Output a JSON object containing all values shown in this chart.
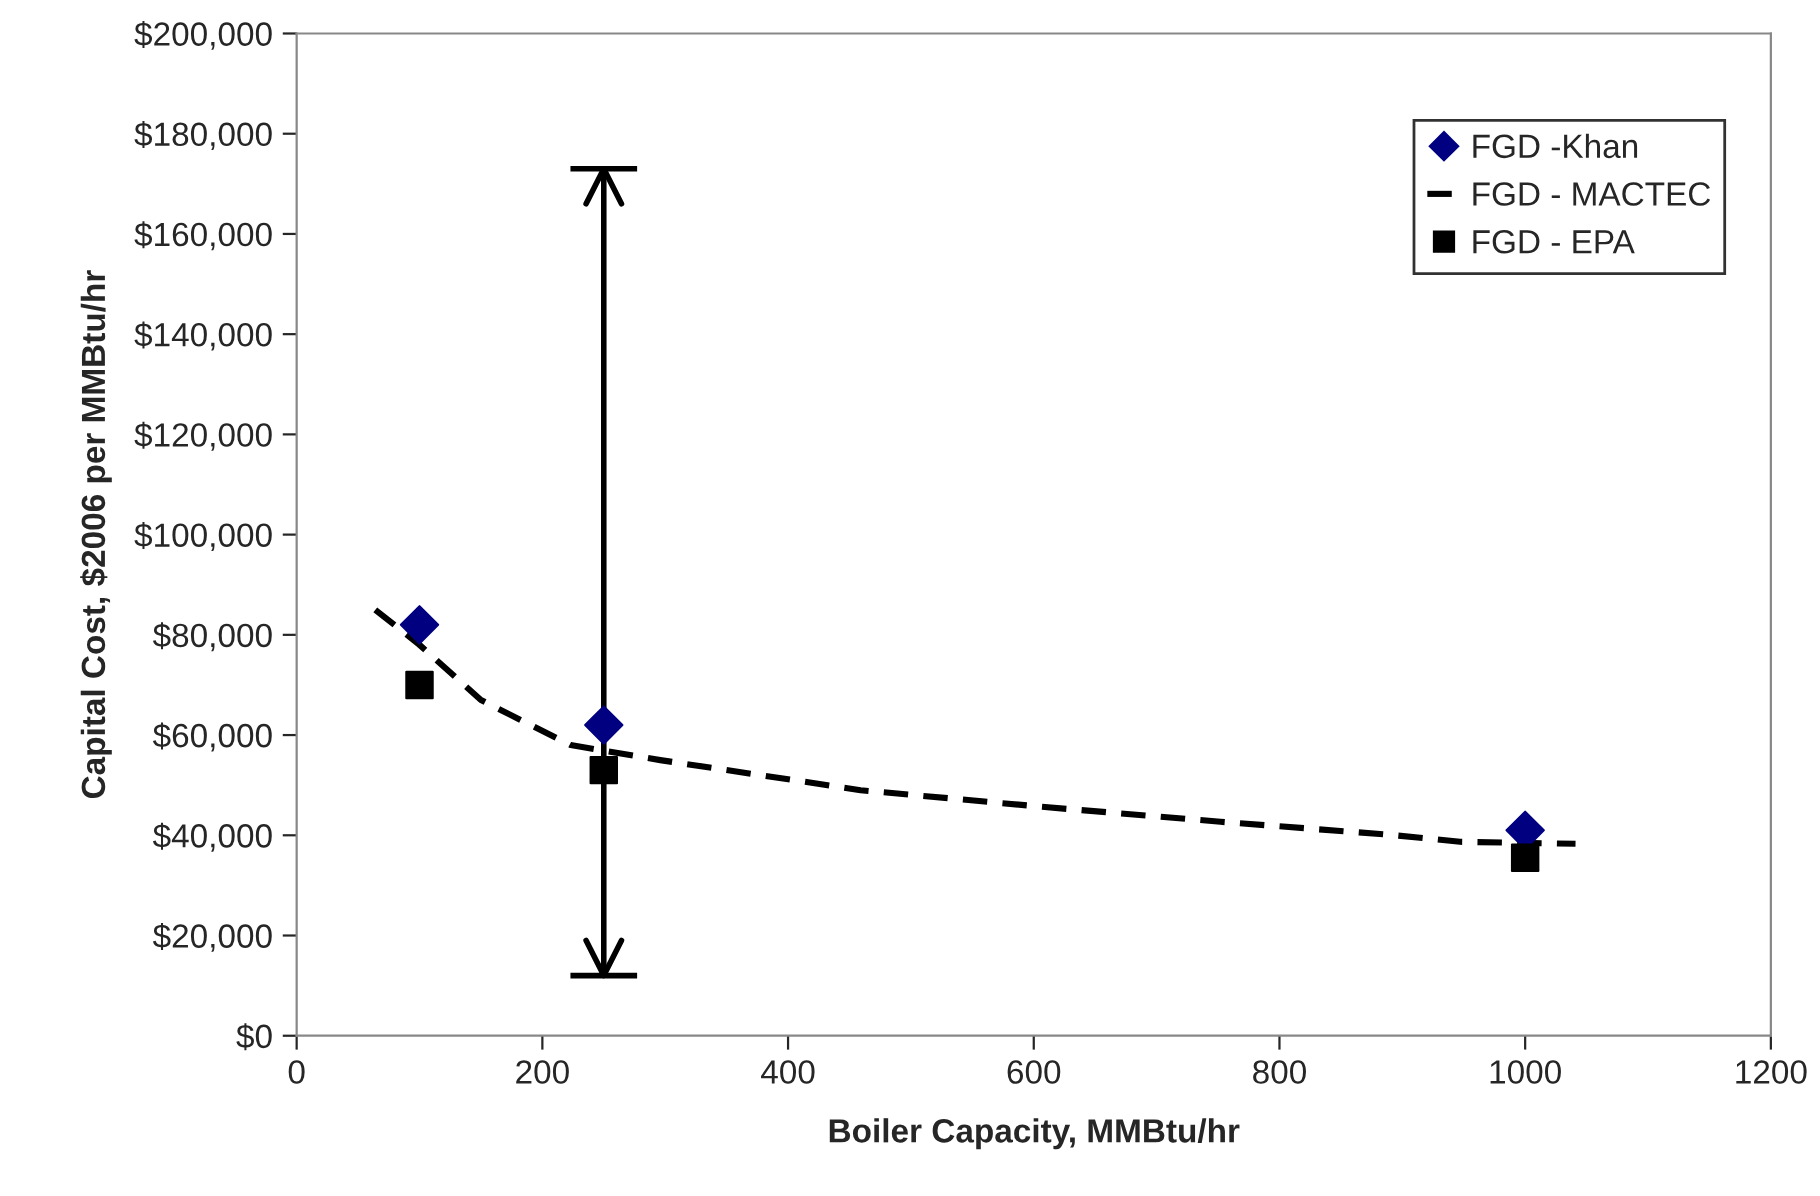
{
  "chart_data": {
    "type": "scatter",
    "xlabel": "Boiler Capacity, MMBtu/hr",
    "ylabel": "Capital Cost, $2006 per MMBtu/hr",
    "xlim": [
      0,
      1200
    ],
    "xticks": [
      0,
      200,
      400,
      600,
      800,
      1000,
      1200
    ],
    "ylim": [
      0,
      200000
    ],
    "yticks": [
      {
        "value": 0,
        "label": "$0"
      },
      {
        "value": 20000,
        "label": "$20,000"
      },
      {
        "value": 40000,
        "label": "$40,000"
      },
      {
        "value": 60000,
        "label": "$60,000"
      },
      {
        "value": 80000,
        "label": "$80,000"
      },
      {
        "value": 100000,
        "label": "$100,000"
      },
      {
        "value": 120000,
        "label": "$120,000"
      },
      {
        "value": 140000,
        "label": "$140,000"
      },
      {
        "value": 160000,
        "label": "$160,000"
      },
      {
        "value": 180000,
        "label": "$180,000"
      },
      {
        "value": 200000,
        "label": "$200,000"
      }
    ],
    "grid": false,
    "legend": "top right",
    "series": [
      {
        "name": "FGD -Khan",
        "marker": "diamond",
        "color": "#000080",
        "x": [
          100,
          250,
          1000
        ],
        "values": [
          82000,
          62000,
          41000
        ],
        "errors": [
          null,
          [
            12000,
            173000
          ],
          null
        ]
      },
      {
        "name": "FGD - MACTEC",
        "type": "line",
        "line_style": "dashed",
        "color": "#000000",
        "x": [
          64,
          100,
          150,
          223,
          296,
          459,
          606,
          752,
          890,
          947,
          1041
        ],
        "values": [
          85000,
          78000,
          67000,
          58000,
          55000,
          49000,
          45700,
          42700,
          40100,
          38700,
          38300
        ]
      },
      {
        "name": "FGD - EPA",
        "marker": "square",
        "color": "#000000",
        "x": [
          100,
          250,
          1000
        ],
        "values": [
          70000,
          53000,
          35500
        ]
      }
    ]
  }
}
